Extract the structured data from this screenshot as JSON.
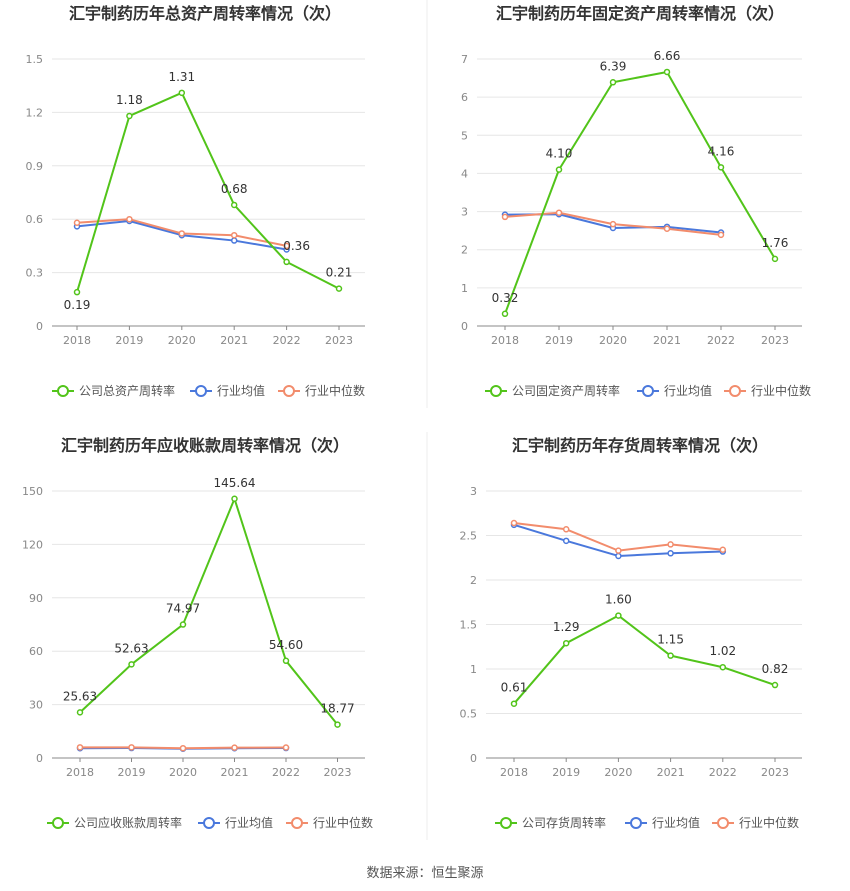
{
  "footer": "数据来源：恒生聚源",
  "colors": {
    "company": "#52c41a",
    "avg": "#4a78dc",
    "median": "#f28c6c",
    "grid": "#e6e6e6",
    "axis": "#888888",
    "label": "#333333"
  },
  "chart_data": [
    {
      "type": "line",
      "title": "汇宇制药历年总资产周转率情况（次）",
      "categories": [
        "2018",
        "2019",
        "2020",
        "2021",
        "2022",
        "2023"
      ],
      "yticks": [
        "0",
        "0.3",
        "0.6",
        "0.9",
        "1.2",
        "1.5"
      ],
      "ylim": [
        0,
        1.5
      ],
      "grid": true,
      "legend_position": "bottom",
      "series": [
        {
          "name": "公司总资产周转率",
          "role": "company",
          "values": [
            0.19,
            1.18,
            1.31,
            0.68,
            0.36,
            0.21
          ],
          "labels": [
            "0.19",
            "1.18",
            "1.31",
            "0.68",
            "0.36",
            "0.21"
          ]
        },
        {
          "name": "行业均值",
          "role": "avg",
          "values": [
            0.56,
            0.59,
            0.51,
            0.48,
            0.43,
            null
          ]
        },
        {
          "name": "行业中位数",
          "role": "median",
          "values": [
            0.58,
            0.6,
            0.52,
            0.51,
            0.45,
            null
          ]
        }
      ]
    },
    {
      "type": "line",
      "title": "汇宇制药历年固定资产周转率情况（次）",
      "categories": [
        "2018",
        "2019",
        "2020",
        "2021",
        "2022",
        "2023"
      ],
      "yticks": [
        "0",
        "1",
        "2",
        "3",
        "4",
        "5",
        "6",
        "7"
      ],
      "ylim": [
        0,
        7
      ],
      "grid": true,
      "legend_position": "bottom",
      "series": [
        {
          "name": "公司固定资产周转率",
          "role": "company",
          "values": [
            0.32,
            4.1,
            6.39,
            6.66,
            4.16,
            1.76
          ],
          "labels": [
            "0.32",
            "4.10",
            "6.39",
            "6.66",
            "4.16",
            "1.76"
          ]
        },
        {
          "name": "行业均值",
          "role": "avg",
          "values": [
            2.92,
            2.93,
            2.57,
            2.6,
            2.45,
            null
          ]
        },
        {
          "name": "行业中位数",
          "role": "median",
          "values": [
            2.86,
            2.97,
            2.67,
            2.55,
            2.39,
            null
          ]
        }
      ]
    },
    {
      "type": "line",
      "title": "汇宇制药历年应收账款周转率情况（次）",
      "categories": [
        "2018",
        "2019",
        "2020",
        "2021",
        "2022",
        "2023"
      ],
      "yticks": [
        "0",
        "30",
        "60",
        "90",
        "120",
        "150"
      ],
      "ylim": [
        0,
        150
      ],
      "grid": true,
      "legend_position": "bottom",
      "series": [
        {
          "name": "公司应收账款周转率",
          "role": "company",
          "values": [
            25.63,
            52.63,
            74.97,
            145.64,
            54.6,
            18.77
          ],
          "labels": [
            "25.63",
            "52.63",
            "74.97",
            "145.64",
            "54.60",
            "18.77"
          ]
        },
        {
          "name": "行业均值",
          "role": "avg",
          "values": [
            5.5,
            5.6,
            5.2,
            5.5,
            5.6,
            null
          ]
        },
        {
          "name": "行业中位数",
          "role": "median",
          "values": [
            6.0,
            6.0,
            5.5,
            5.8,
            5.9,
            null
          ]
        }
      ]
    },
    {
      "type": "line",
      "title": "汇宇制药历年存货周转率情况（次）",
      "categories": [
        "2018",
        "2019",
        "2020",
        "2021",
        "2022",
        "2023"
      ],
      "yticks": [
        "0",
        "0.5",
        "1",
        "1.5",
        "2",
        "2.5",
        "3"
      ],
      "ylim": [
        0,
        3
      ],
      "grid": true,
      "legend_position": "bottom",
      "series": [
        {
          "name": "公司存货周转率",
          "role": "company",
          "values": [
            0.61,
            1.29,
            1.6,
            1.15,
            1.02,
            0.82
          ],
          "labels": [
            "0.61",
            "1.29",
            "1.60",
            "1.15",
            "1.02",
            "0.82"
          ]
        },
        {
          "name": "行业均值",
          "role": "avg",
          "values": [
            2.62,
            2.44,
            2.27,
            2.3,
            2.32,
            null
          ]
        },
        {
          "name": "行业中位数",
          "role": "median",
          "values": [
            2.64,
            2.57,
            2.33,
            2.4,
            2.34,
            null
          ]
        }
      ]
    }
  ]
}
